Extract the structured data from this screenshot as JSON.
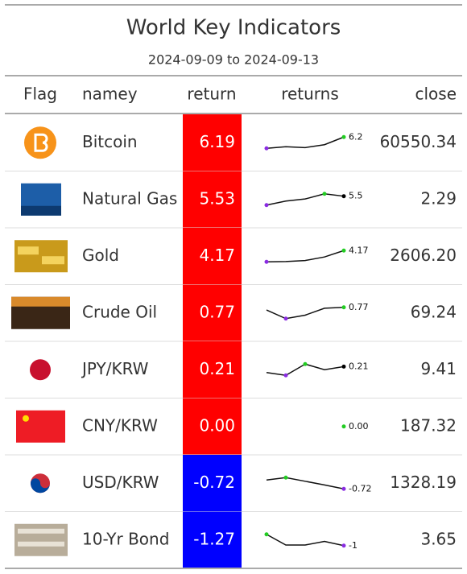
{
  "header": {
    "title": "World Key Indicators",
    "subtitle": "2024-09-09 to 2024-09-13"
  },
  "columns": [
    "Flag",
    "namey",
    "return",
    "returns",
    "close"
  ],
  "rows": [
    {
      "name": "Bitcoin",
      "return": "6.19",
      "fill": "#ff0000",
      "spark": [
        0,
        0.9,
        0.4,
        2.0,
        6.19
      ],
      "spark_label": "6.2",
      "close": "60550.34"
    },
    {
      "name": "Natural Gas",
      "return": "5.53",
      "fill": "#ff0000",
      "spark": [
        0,
        2.5,
        3.8,
        7.0,
        5.53
      ],
      "spark_label": "5.5",
      "close": "2.29"
    },
    {
      "name": "Gold",
      "return": "4.17",
      "fill": "#ff0000",
      "spark": [
        0,
        0.1,
        0.5,
        1.8,
        4.17
      ],
      "spark_label": "4.17",
      "close": "2606.20"
    },
    {
      "name": "Crude Oil",
      "return": "0.77",
      "fill": "#ff0000",
      "spark": [
        0,
        -2.5,
        -1.5,
        0.5,
        0.77
      ],
      "spark_label": "0.77",
      "close": "69.24"
    },
    {
      "name": "JPY/KRW",
      "return": "0.21",
      "fill": "#ff0000",
      "spark": [
        0,
        -0.1,
        0.3,
        0.1,
        0.21
      ],
      "spark_label": "0.21",
      "close": "9.41"
    },
    {
      "name": "CNY/KRW",
      "return": "0.00",
      "fill": "#ff0000",
      "spark": [
        null,
        null,
        null,
        null,
        0
      ],
      "spark_label": "0.00",
      "close": "187.32"
    },
    {
      "name": "USD/KRW",
      "return": "-0.72",
      "fill": "#0000ff",
      "spark": [
        0,
        0.2,
        -0.1,
        -0.4,
        -0.72
      ],
      "spark_label": "-0.72",
      "close": "1328.19"
    },
    {
      "name": "10-Yr Bond",
      "return": "-1.27",
      "fill": "#0000ff",
      "spark": [
        0,
        -1.2,
        -1.2,
        -0.8,
        -1.27
      ],
      "spark_label": "-1",
      "close": "3.65"
    }
  ]
}
